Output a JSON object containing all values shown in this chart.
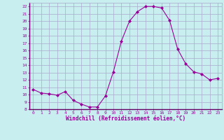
{
  "x": [
    0,
    1,
    2,
    3,
    4,
    5,
    6,
    7,
    8,
    9,
    10,
    11,
    12,
    13,
    14,
    15,
    16,
    17,
    18,
    19,
    20,
    21,
    22,
    23
  ],
  "y": [
    10.7,
    10.2,
    10.1,
    9.9,
    10.4,
    9.2,
    8.7,
    8.3,
    8.3,
    9.8,
    13.1,
    17.3,
    20.0,
    21.3,
    22.0,
    22.0,
    21.8,
    20.1,
    16.2,
    14.2,
    13.1,
    12.8,
    12.0,
    12.2
  ],
  "line_color": "#990099",
  "marker": "D",
  "marker_size": 2.0,
  "bg_color": "#c8eef0",
  "grid_color": "#aaaacc",
  "axis_label_color": "#990099",
  "tick_color": "#990099",
  "xlabel": "Windchill (Refroidissement éolien,°C)",
  "ylim": [
    8,
    22.5
  ],
  "xlim": [
    -0.5,
    23.5
  ],
  "yticks": [
    8,
    9,
    10,
    11,
    12,
    13,
    14,
    15,
    16,
    17,
    18,
    19,
    20,
    21,
    22
  ],
  "xticks": [
    0,
    1,
    2,
    3,
    4,
    5,
    6,
    7,
    8,
    9,
    10,
    11,
    12,
    13,
    14,
    15,
    16,
    17,
    18,
    19,
    20,
    21,
    22,
    23
  ],
  "spine_color": "#660066",
  "spine_bottom_color": "#660066"
}
